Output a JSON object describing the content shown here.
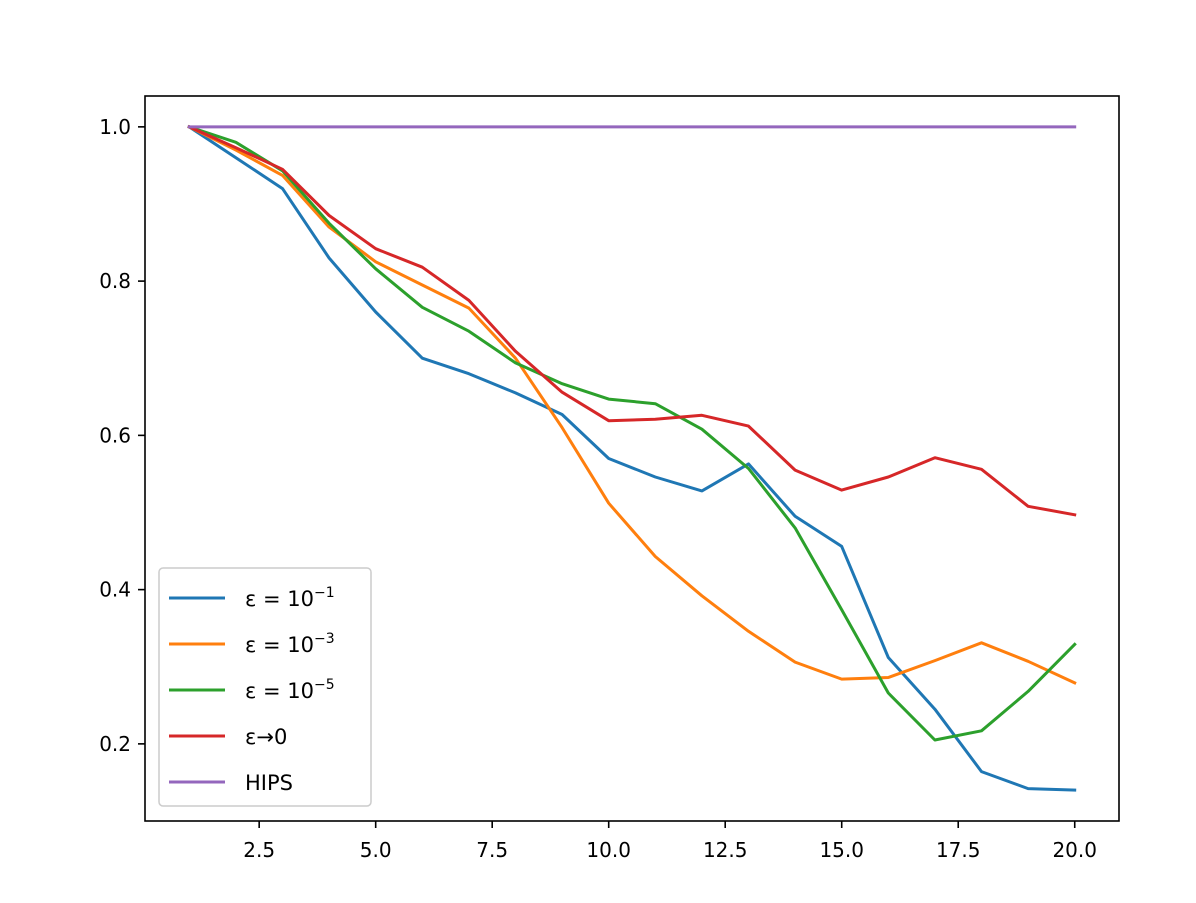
{
  "chart_data": {
    "type": "line",
    "title": "",
    "xlabel": "",
    "ylabel": "",
    "xlim": [
      0.05,
      20.95
    ],
    "ylim": [
      0.1,
      1.04
    ],
    "x_ticks": [
      2.5,
      5.0,
      7.5,
      10.0,
      12.5,
      15.0,
      17.5,
      20.0
    ],
    "x_tick_labels": [
      "2.5",
      "5.0",
      "7.5",
      "10.0",
      "12.5",
      "15.0",
      "17.5",
      "20.0"
    ],
    "y_ticks": [
      0.2,
      0.4,
      0.6,
      0.8,
      1.0
    ],
    "y_tick_labels": [
      "0.2",
      "0.4",
      "0.6",
      "0.8",
      "1.0"
    ],
    "grid": false,
    "legend_position": "lower-left",
    "x": [
      1,
      2,
      3,
      4,
      5,
      6,
      7,
      8,
      9,
      10,
      11,
      12,
      13,
      14,
      15,
      16,
      17,
      18,
      19,
      20
    ],
    "series": [
      {
        "name": "ε = 10^-1",
        "label_base": "ε = 10",
        "label_exp": "−1",
        "color": "#1f77b4",
        "values": [
          1.0,
          0.96,
          0.92,
          0.83,
          0.76,
          0.7,
          0.68,
          0.655,
          0.627,
          0.57,
          0.546,
          0.528,
          0.563,
          0.495,
          0.456,
          0.312,
          0.245,
          0.164,
          0.142,
          0.14
        ]
      },
      {
        "name": "ε = 10^-3",
        "label_base": "ε = 10",
        "label_exp": "−3",
        "color": "#ff7f0e",
        "values": [
          1.0,
          0.97,
          0.937,
          0.87,
          0.825,
          0.795,
          0.765,
          0.7,
          0.61,
          0.512,
          0.443,
          0.392,
          0.346,
          0.306,
          0.284,
          0.286,
          0.308,
          0.331,
          0.307,
          0.279
        ]
      },
      {
        "name": "ε = 10^-5",
        "label_base": "ε = 10",
        "label_exp": "−5",
        "color": "#2ca02c",
        "values": [
          1.0,
          0.98,
          0.943,
          0.875,
          0.816,
          0.766,
          0.735,
          0.694,
          0.667,
          0.647,
          0.641,
          0.608,
          0.557,
          0.48,
          0.374,
          0.266,
          0.205,
          0.217,
          0.268,
          0.329
        ]
      },
      {
        "name": "ε→0",
        "label_base": "ε→0",
        "label_exp": "",
        "color": "#d62728",
        "values": [
          1.0,
          0.973,
          0.945,
          0.885,
          0.842,
          0.818,
          0.775,
          0.709,
          0.656,
          0.619,
          0.621,
          0.626,
          0.612,
          0.555,
          0.529,
          0.546,
          0.571,
          0.556,
          0.508,
          0.497
        ]
      },
      {
        "name": "HIPS",
        "label_base": "HIPS",
        "label_exp": "",
        "color": "#9467bd",
        "values": [
          1.0,
          1.0,
          1.0,
          1.0,
          1.0,
          1.0,
          1.0,
          1.0,
          1.0,
          1.0,
          1.0,
          1.0,
          1.0,
          1.0,
          1.0,
          1.0,
          1.0,
          1.0,
          1.0,
          1.0
        ]
      }
    ]
  }
}
